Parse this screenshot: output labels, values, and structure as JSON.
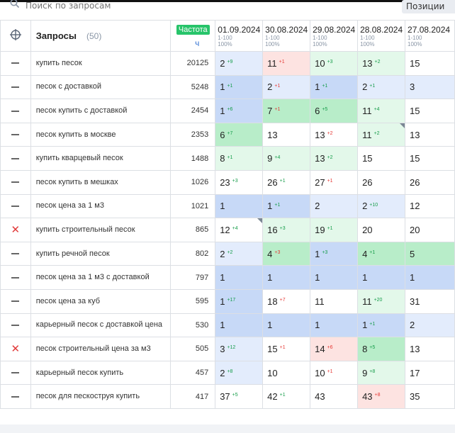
{
  "search": {
    "placeholder": "Поиск по запросам"
  },
  "tabs": {
    "positions": "Позиции"
  },
  "header": {
    "queries_label": "Запросы",
    "queries_count": "(50)",
    "freq_label": "Частота",
    "freq_sub": "ч",
    "dates": [
      {
        "date": "01.09.2024",
        "range": "1-100",
        "pct": "100%"
      },
      {
        "date": "30.08.2024",
        "range": "1-100",
        "pct": "100%"
      },
      {
        "date": "29.08.2024",
        "range": "1-100",
        "pct": "100%"
      },
      {
        "date": "28.08.2024",
        "range": "1-100",
        "pct": "100%"
      },
      {
        "date": "27.08.2024",
        "range": "1-100",
        "pct": "100%"
      }
    ]
  },
  "colors": {
    "blue": "#c7d9f7",
    "light_green": "#e3f8ea",
    "green": "#b8edc9",
    "light_blue": "#e3ecfc",
    "light_red": "#fde3e1",
    "white": "#ffffff"
  },
  "rows": [
    {
      "status": "dash",
      "query": "купить песок",
      "freq": "20125",
      "cells": [
        {
          "v": "2",
          "d": "+9",
          "dir": "up",
          "bg": "light_blue"
        },
        {
          "v": "11",
          "d": "+1",
          "dir": "down",
          "bg": "light_red"
        },
        {
          "v": "10",
          "d": "+3",
          "dir": "up",
          "bg": "light_green"
        },
        {
          "v": "13",
          "d": "+2",
          "dir": "up",
          "bg": "light_green"
        },
        {
          "v": "15",
          "d": "",
          "dir": "",
          "bg": "white"
        }
      ]
    },
    {
      "status": "dash",
      "query": "песок с доставкой",
      "freq": "5248",
      "cells": [
        {
          "v": "1",
          "d": "+1",
          "dir": "up",
          "bg": "blue"
        },
        {
          "v": "2",
          "d": "+1",
          "dir": "down",
          "bg": "light_blue"
        },
        {
          "v": "1",
          "d": "+1",
          "dir": "up",
          "bg": "blue"
        },
        {
          "v": "2",
          "d": "+1",
          "dir": "up",
          "bg": "light_blue"
        },
        {
          "v": "3",
          "d": "",
          "dir": "",
          "bg": "light_blue"
        }
      ]
    },
    {
      "status": "dash",
      "query": "песок купить с доставкой",
      "freq": "2454",
      "cells": [
        {
          "v": "1",
          "d": "+6",
          "dir": "up",
          "bg": "blue"
        },
        {
          "v": "7",
          "d": "+1",
          "dir": "down",
          "bg": "green"
        },
        {
          "v": "6",
          "d": "+5",
          "dir": "up",
          "bg": "green"
        },
        {
          "v": "11",
          "d": "+4",
          "dir": "up",
          "bg": "light_green"
        },
        {
          "v": "15",
          "d": "",
          "dir": "",
          "bg": "white"
        }
      ]
    },
    {
      "status": "dash",
      "query": "песок купить в москве",
      "freq": "2353",
      "cells": [
        {
          "v": "6",
          "d": "+7",
          "dir": "up",
          "bg": "green"
        },
        {
          "v": "13",
          "d": "",
          "dir": "",
          "bg": "white"
        },
        {
          "v": "13",
          "d": "+2",
          "dir": "down",
          "bg": "white"
        },
        {
          "v": "11",
          "d": "+2",
          "dir": "up",
          "bg": "light_green",
          "corner": true
        },
        {
          "v": "13",
          "d": "",
          "dir": "",
          "bg": "white"
        }
      ]
    },
    {
      "status": "dash",
      "query": "купить кварцевый песок",
      "freq": "1488",
      "cells": [
        {
          "v": "8",
          "d": "+1",
          "dir": "up",
          "bg": "light_green"
        },
        {
          "v": "9",
          "d": "+4",
          "dir": "up",
          "bg": "light_green"
        },
        {
          "v": "13",
          "d": "+2",
          "dir": "up",
          "bg": "light_green"
        },
        {
          "v": "15",
          "d": "",
          "dir": "",
          "bg": "white"
        },
        {
          "v": "15",
          "d": "",
          "dir": "",
          "bg": "white"
        }
      ]
    },
    {
      "status": "dash",
      "query": "песок купить в мешках",
      "freq": "1026",
      "cells": [
        {
          "v": "23",
          "d": "+3",
          "dir": "up",
          "bg": "white"
        },
        {
          "v": "26",
          "d": "+1",
          "dir": "up",
          "bg": "white"
        },
        {
          "v": "27",
          "d": "+1",
          "dir": "down",
          "bg": "white"
        },
        {
          "v": "26",
          "d": "",
          "dir": "",
          "bg": "white"
        },
        {
          "v": "26",
          "d": "",
          "dir": "",
          "bg": "white"
        }
      ]
    },
    {
      "status": "dash",
      "query": "песок цена за 1 м3",
      "freq": "1021",
      "cells": [
        {
          "v": "1",
          "d": "",
          "dir": "",
          "bg": "blue"
        },
        {
          "v": "1",
          "d": "+1",
          "dir": "up",
          "bg": "blue"
        },
        {
          "v": "2",
          "d": "",
          "dir": "",
          "bg": "light_blue"
        },
        {
          "v": "2",
          "d": "+10",
          "dir": "up",
          "bg": "light_blue"
        },
        {
          "v": "12",
          "d": "",
          "dir": "",
          "bg": "white"
        }
      ]
    },
    {
      "status": "cross",
      "query": "купить строительный песок",
      "freq": "865",
      "cells": [
        {
          "v": "12",
          "d": "+4",
          "dir": "up",
          "bg": "white",
          "corner": true
        },
        {
          "v": "16",
          "d": "+3",
          "dir": "up",
          "bg": "light_green"
        },
        {
          "v": "19",
          "d": "+1",
          "dir": "up",
          "bg": "light_green"
        },
        {
          "v": "20",
          "d": "",
          "dir": "",
          "bg": "white"
        },
        {
          "v": "20",
          "d": "",
          "dir": "",
          "bg": "white"
        }
      ]
    },
    {
      "status": "dash",
      "query": "купить речной песок",
      "freq": "802",
      "cells": [
        {
          "v": "2",
          "d": "+2",
          "dir": "up",
          "bg": "light_blue"
        },
        {
          "v": "4",
          "d": "+3",
          "dir": "down",
          "bg": "green"
        },
        {
          "v": "1",
          "d": "+3",
          "dir": "up",
          "bg": "blue"
        },
        {
          "v": "4",
          "d": "+1",
          "dir": "up",
          "bg": "green"
        },
        {
          "v": "5",
          "d": "",
          "dir": "",
          "bg": "green"
        }
      ]
    },
    {
      "status": "dash",
      "query": "песок цена за 1 м3 с доставкой",
      "freq": "797",
      "cells": [
        {
          "v": "1",
          "d": "",
          "dir": "",
          "bg": "blue"
        },
        {
          "v": "1",
          "d": "",
          "dir": "",
          "bg": "blue"
        },
        {
          "v": "1",
          "d": "",
          "dir": "",
          "bg": "blue"
        },
        {
          "v": "1",
          "d": "",
          "dir": "",
          "bg": "blue"
        },
        {
          "v": "1",
          "d": "",
          "dir": "",
          "bg": "blue"
        }
      ]
    },
    {
      "status": "dash",
      "query": "песок цена за куб",
      "freq": "595",
      "cells": [
        {
          "v": "1",
          "d": "+17",
          "dir": "up",
          "bg": "blue"
        },
        {
          "v": "18",
          "d": "+7",
          "dir": "down",
          "bg": "white"
        },
        {
          "v": "11",
          "d": "",
          "dir": "",
          "bg": "white"
        },
        {
          "v": "11",
          "d": "+20",
          "dir": "up",
          "bg": "light_green"
        },
        {
          "v": "31",
          "d": "",
          "dir": "",
          "bg": "white"
        }
      ]
    },
    {
      "status": "dash",
      "query": "карьерный песок с доставкой цена",
      "freq": "530",
      "cells": [
        {
          "v": "1",
          "d": "",
          "dir": "",
          "bg": "blue"
        },
        {
          "v": "1",
          "d": "",
          "dir": "",
          "bg": "blue"
        },
        {
          "v": "1",
          "d": "",
          "dir": "",
          "bg": "blue"
        },
        {
          "v": "1",
          "d": "+1",
          "dir": "up",
          "bg": "blue"
        },
        {
          "v": "2",
          "d": "",
          "dir": "",
          "bg": "light_blue"
        }
      ]
    },
    {
      "status": "cross",
      "query": "песок строительный цена за м3",
      "freq": "505",
      "cells": [
        {
          "v": "3",
          "d": "+12",
          "dir": "up",
          "bg": "light_blue"
        },
        {
          "v": "15",
          "d": "+1",
          "dir": "down",
          "bg": "white"
        },
        {
          "v": "14",
          "d": "+6",
          "dir": "down",
          "bg": "light_red"
        },
        {
          "v": "8",
          "d": "+5",
          "dir": "up",
          "bg": "green"
        },
        {
          "v": "13",
          "d": "",
          "dir": "",
          "bg": "white"
        }
      ]
    },
    {
      "status": "dash",
      "query": "карьерный песок купить",
      "freq": "457",
      "cells": [
        {
          "v": "2",
          "d": "+8",
          "dir": "up",
          "bg": "light_blue"
        },
        {
          "v": "10",
          "d": "",
          "dir": "",
          "bg": "white"
        },
        {
          "v": "10",
          "d": "+1",
          "dir": "down",
          "bg": "white"
        },
        {
          "v": "9",
          "d": "+8",
          "dir": "up",
          "bg": "light_green"
        },
        {
          "v": "17",
          "d": "",
          "dir": "",
          "bg": "white"
        }
      ]
    },
    {
      "status": "dash",
      "query": "песок для пескоструя купить",
      "freq": "417",
      "cells": [
        {
          "v": "37",
          "d": "+5",
          "dir": "up",
          "bg": "white"
        },
        {
          "v": "42",
          "d": "+1",
          "dir": "up",
          "bg": "white"
        },
        {
          "v": "43",
          "d": "",
          "dir": "",
          "bg": "white"
        },
        {
          "v": "43",
          "d": "+8",
          "dir": "down",
          "bg": "light_red"
        },
        {
          "v": "35",
          "d": "",
          "dir": "",
          "bg": "white"
        }
      ]
    }
  ]
}
